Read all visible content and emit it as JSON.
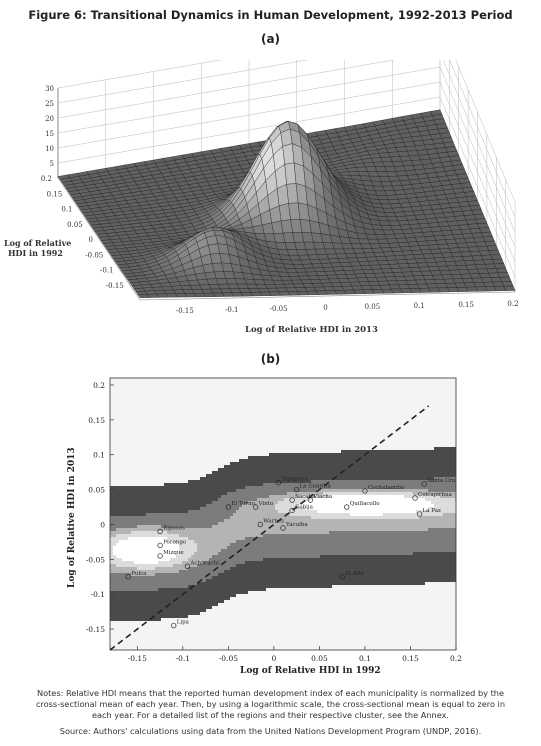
{
  "figure": {
    "title": "Figure 6: Transitional Dynamics in Human Development, 1992-2013 Period",
    "notes": "Notes: Relative HDI means that the reported human development index of each municipality is normalized by the cross-sectional mean of each year. Then, by using a logarithmic scale, the cross-sectional mean is equal to zero in each year. For a detailed list of the regions and their respective cluster, see the Annex.",
    "source": "Source: Authors' calculations using data from the United Nations Development Program (UNDP, 2016)."
  },
  "chart_data": [
    {
      "panel": "(a)",
      "type": "surface",
      "xlabel": "Log of Relative HDI in 2013",
      "ylabel": "Log of Relative HDI in 1992",
      "zticks": [
        "30",
        "25",
        "20",
        "15",
        "10",
        "5"
      ],
      "yticks": [
        "0.2",
        "0.15",
        "0.1",
        "0.05",
        "0",
        "-0.05",
        "-0.1",
        "-0.15"
      ],
      "xticks": [
        "-0.15",
        "-0.1",
        "-0.05",
        "0",
        "0.05",
        "0.1",
        "0.15",
        "0.2"
      ],
      "zlim": [
        0,
        30
      ],
      "xlim": [
        -0.2,
        0.2
      ],
      "ylim": [
        -0.2,
        0.2
      ],
      "peaks": [
        {
          "x": 0.0,
          "y": 0.0,
          "z": 29
        },
        {
          "x": -0.1,
          "y": -0.1,
          "z": 9
        }
      ]
    },
    {
      "panel": "(b)",
      "type": "contour",
      "xlabel": "Log of Relative HDI in 1992",
      "ylabel": "Log of Relative HDI in 2013",
      "xticks": [
        "-0.15",
        "-0.1",
        "-0.05",
        "0",
        "0.05",
        "0.1",
        "0.15",
        "0.2"
      ],
      "yticks": [
        "0.2",
        "0.15",
        "0.1",
        "0.05",
        "0",
        "-0.05",
        "-0.1",
        "-0.15"
      ],
      "xlim": [
        -0.18,
        0.2
      ],
      "ylim": [
        -0.18,
        0.21
      ],
      "diagonal": "45-degree dashed line",
      "points": [
        {
          "label": "Tapapeya",
          "x": 0.005,
          "y": 0.06
        },
        {
          "label": "La Guardia",
          "x": 0.025,
          "y": 0.05
        },
        {
          "label": "Cochabamba",
          "x": 0.1,
          "y": 0.048
        },
        {
          "label": "Santa Cruz",
          "x": 0.165,
          "y": 0.058
        },
        {
          "label": "Sacaba",
          "x": 0.02,
          "y": 0.035
        },
        {
          "label": "Viacha",
          "x": 0.04,
          "y": 0.035
        },
        {
          "label": "Vinto",
          "x": -0.02,
          "y": 0.025
        },
        {
          "label": "Colcapirhua",
          "x": 0.155,
          "y": 0.038
        },
        {
          "label": "Quillacollo",
          "x": 0.08,
          "y": 0.025
        },
        {
          "label": "La Paz",
          "x": 0.16,
          "y": 0.015
        },
        {
          "label": "Cobija",
          "x": 0.02,
          "y": 0.02
        },
        {
          "label": "El Torno",
          "x": -0.05,
          "y": 0.025
        },
        {
          "label": "Warnes",
          "x": -0.015,
          "y": 0.0
        },
        {
          "label": "Yacuiba",
          "x": 0.01,
          "y": -0.005
        },
        {
          "label": "Riposos",
          "x": -0.125,
          "y": -0.01
        },
        {
          "label": "Porongo",
          "x": -0.125,
          "y": -0.03
        },
        {
          "label": "Mizque",
          "x": -0.125,
          "y": -0.045
        },
        {
          "label": "Achacachi",
          "x": -0.095,
          "y": -0.06
        },
        {
          "label": "Pulca",
          "x": -0.16,
          "y": -0.075
        },
        {
          "label": "El Alto",
          "x": 0.075,
          "y": -0.075
        },
        {
          "label": "Lipa",
          "x": -0.11,
          "y": -0.145
        }
      ]
    }
  ]
}
